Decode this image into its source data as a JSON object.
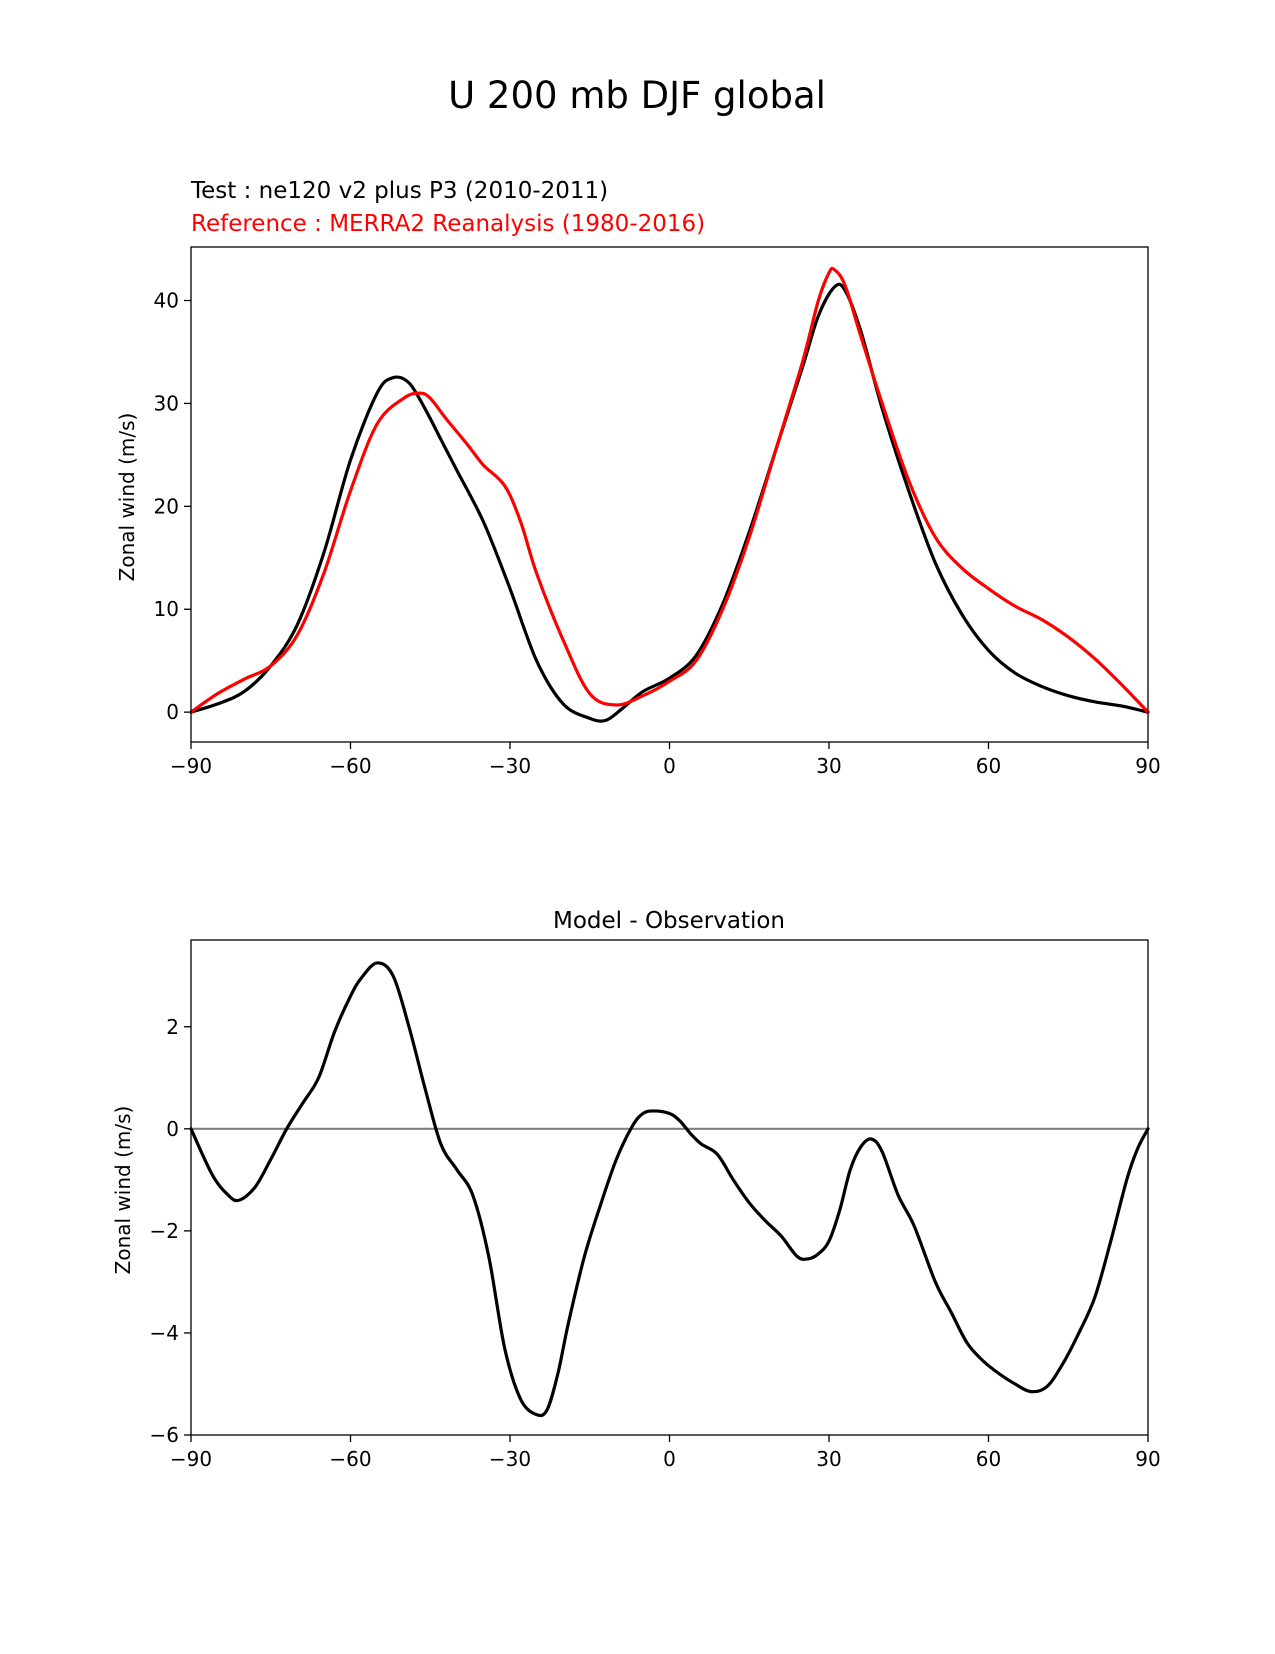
{
  "figure_title": "U 200 mb DJF global",
  "colors": {
    "test": "#000000",
    "reference": "#ff0000",
    "zero_line": "#808080",
    "axes": "#000000"
  },
  "chart_data": [
    {
      "type": "line",
      "test_label": "Test : ne120 v2 plus P3 (2010-2011)",
      "reference_label": "Reference : MERRA2 Reanalysis (1980-2016)",
      "xlabel": "",
      "ylabel": "Zonal wind (m/s)",
      "xlim": [
        -90,
        90
      ],
      "ylim": [
        -2.9,
        45.2
      ],
      "xticks": [
        -90,
        -60,
        -30,
        0,
        30,
        60,
        90
      ],
      "xtick_labels": [
        "−90",
        "−60",
        "−30",
        "0",
        "30",
        "60",
        "90"
      ],
      "yticks": [
        0,
        10,
        20,
        30,
        40
      ],
      "ytick_labels": [
        "0",
        "10",
        "20",
        "30",
        "40"
      ],
      "series": [
        {
          "name": "Test",
          "color": "#000000",
          "x": [
            -90,
            -85,
            -80,
            -75,
            -70,
            -65,
            -60,
            -55,
            -52,
            -49,
            -46,
            -43,
            -40,
            -35,
            -30,
            -25,
            -20,
            -15,
            -12,
            -9,
            -5,
            0,
            5,
            10,
            15,
            20,
            25,
            28,
            31,
            33,
            36,
            40,
            45,
            50,
            55,
            60,
            65,
            70,
            75,
            80,
            85,
            90
          ],
          "y": [
            0,
            0.8,
            2.0,
            4.5,
            8.5,
            15.5,
            24.5,
            31.0,
            32.5,
            32.0,
            29.5,
            26.5,
            23.5,
            18.5,
            12.0,
            5.0,
            0.8,
            -0.6,
            -0.8,
            0.3,
            2.0,
            3.3,
            5.5,
            10.5,
            17.5,
            25.5,
            33.5,
            38.5,
            41.3,
            41.0,
            37.0,
            29.5,
            21.5,
            14.5,
            9.5,
            6.0,
            3.8,
            2.5,
            1.6,
            1.0,
            0.6,
            0
          ]
        },
        {
          "name": "Reference",
          "color": "#ff0000",
          "x": [
            -90,
            -85,
            -80,
            -75,
            -70,
            -65,
            -60,
            -55,
            -50,
            -47,
            -45,
            -42,
            -38,
            -35,
            -31,
            -28,
            -25,
            -20,
            -15,
            -10,
            -5,
            0,
            5,
            10,
            15,
            20,
            25,
            28,
            30,
            31,
            33,
            36,
            40,
            45,
            50,
            55,
            60,
            65,
            70,
            75,
            80,
            85,
            90
          ],
          "y": [
            0,
            1.8,
            3.2,
            4.5,
            7.5,
            13.5,
            21.5,
            28.0,
            30.5,
            31.0,
            30.5,
            28.5,
            26.0,
            24.0,
            22.0,
            18.5,
            13.5,
            7.0,
            1.8,
            0.7,
            1.6,
            3.0,
            5.0,
            10.0,
            17.0,
            25.5,
            34.0,
            40.0,
            42.7,
            43.0,
            41.5,
            36.5,
            30.0,
            22.5,
            17.0,
            14.0,
            12.0,
            10.3,
            9.0,
            7.3,
            5.2,
            2.7,
            0
          ]
        }
      ]
    },
    {
      "type": "line",
      "title": "Model - Observation",
      "xlabel": "",
      "ylabel": "Zonal wind (m/s)",
      "xlim": [
        -90,
        90
      ],
      "ylim": [
        -6.0,
        3.7
      ],
      "xticks": [
        -90,
        -60,
        -30,
        0,
        30,
        60,
        90
      ],
      "xtick_labels": [
        "−90",
        "−60",
        "−30",
        "0",
        "30",
        "60",
        "90"
      ],
      "yticks": [
        -6,
        -4,
        -2,
        0,
        2
      ],
      "ytick_labels": [
        "−6",
        "−4",
        "−2",
        "0",
        "2"
      ],
      "series": [
        {
          "name": "Model - Observation",
          "color": "#000000",
          "x": [
            -90,
            -86,
            -83,
            -81,
            -78,
            -75,
            -72,
            -69,
            -66,
            -63,
            -60,
            -58,
            -55,
            -52,
            -49,
            -46,
            -43,
            -40,
            -37,
            -34,
            -31,
            -28,
            -25,
            -23,
            -21,
            -19,
            -16,
            -13,
            -10,
            -7,
            -5,
            -3,
            0,
            2,
            4,
            6,
            9,
            12,
            15,
            18,
            21,
            24,
            26,
            28,
            30,
            32,
            34,
            36,
            38,
            40,
            43,
            46,
            50,
            53,
            56,
            59,
            62,
            65,
            68,
            71,
            74,
            77,
            80,
            83,
            86,
            88,
            90
          ],
          "y": [
            0,
            -0.9,
            -1.3,
            -1.4,
            -1.15,
            -0.6,
            0.0,
            0.5,
            1.0,
            1.9,
            2.6,
            2.95,
            3.25,
            3.0,
            2.0,
            0.8,
            -0.3,
            -0.8,
            -1.3,
            -2.5,
            -4.3,
            -5.3,
            -5.6,
            -5.5,
            -4.8,
            -3.8,
            -2.5,
            -1.5,
            -0.6,
            0.05,
            0.3,
            0.35,
            0.3,
            0.15,
            -0.1,
            -0.3,
            -0.5,
            -1.0,
            -1.45,
            -1.8,
            -2.1,
            -2.5,
            -2.55,
            -2.45,
            -2.2,
            -1.6,
            -0.8,
            -0.35,
            -0.2,
            -0.45,
            -1.3,
            -1.9,
            -3.0,
            -3.6,
            -4.2,
            -4.55,
            -4.8,
            -5.0,
            -5.15,
            -5.05,
            -4.6,
            -4.0,
            -3.3,
            -2.2,
            -1.0,
            -0.4,
            0
          ]
        },
        {
          "name": "Zero line",
          "color": "#808080",
          "x": [
            -90,
            90
          ],
          "y": [
            0,
            0
          ]
        }
      ]
    }
  ]
}
